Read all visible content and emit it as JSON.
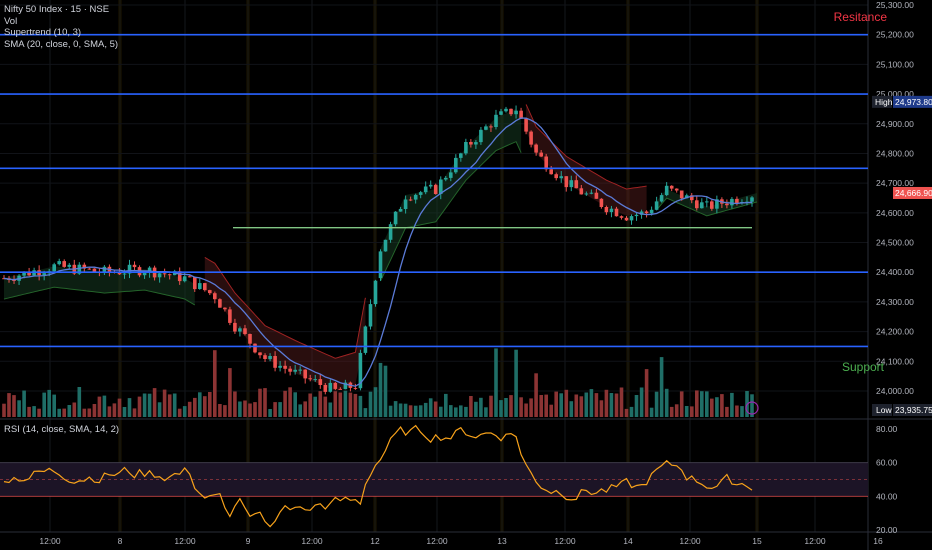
{
  "legend": {
    "symbol": "Nifty 50 Index · 15 · NSE",
    "vol": "Vol",
    "supertrend": "Supertrend (10, 3)",
    "sma": "SMA (20, close, 0, SMA, 5)",
    "rsi": "RSI (14, close, SMA, 14, 2)"
  },
  "annotations": {
    "resistance": "Resitance",
    "support": "Support"
  },
  "colors": {
    "up": "#26a69a",
    "down": "#ef5350",
    "level": "#2962ff",
    "trendline": "#81c784",
    "sma": "#5b7bd8",
    "rsi": "#f7a21b"
  },
  "badges": {
    "high": {
      "label": "High",
      "value": "24,973.80"
    },
    "low": {
      "label": "Low",
      "value": "23,935.75"
    },
    "last": {
      "value": "24,666.90"
    }
  },
  "chart_data": {
    "type": "candlestick",
    "y_axis": {
      "ticks": [
        "25,300.00",
        "25,200.00",
        "25,100.00",
        "25,000.00",
        "24,900.00",
        "24,800.00",
        "24,700.00",
        "24,600.00",
        "24,500.00",
        "24,400.00",
        "24,300.00",
        "24,200.00",
        "24,100.00",
        "24,000.00"
      ],
      "range": [
        23935.75,
        25330
      ]
    },
    "x_axis": {
      "ticks": [
        "12:00",
        "8",
        "12:00",
        "9",
        "12:00",
        "12",
        "12:00",
        "13",
        "12:00",
        "14",
        "12:00",
        "15",
        "12:00",
        "16"
      ]
    },
    "horizontal_levels": [
      25200,
      25000,
      24750,
      24400,
      24150
    ],
    "trendline_level": 24550,
    "rsi": {
      "ticks": [
        "80.00",
        "60.00",
        "40.00",
        "20.00"
      ],
      "range": [
        20,
        85
      ],
      "band": [
        40,
        60
      ]
    },
    "anchors": [
      [
        0,
        24380
      ],
      [
        10,
        24420
      ],
      [
        20,
        24400
      ],
      [
        28,
        24410
      ],
      [
        36,
        24380
      ],
      [
        42,
        24320
      ],
      [
        46,
        24220
      ],
      [
        52,
        24110
      ],
      [
        58,
        24060
      ],
      [
        66,
        24000
      ],
      [
        70,
        24020
      ],
      [
        75,
        24480
      ],
      [
        80,
        24660
      ],
      [
        86,
        24680
      ],
      [
        92,
        24820
      ],
      [
        98,
        24920
      ],
      [
        102,
        24950
      ],
      [
        106,
        24800
      ],
      [
        112,
        24700
      ],
      [
        120,
        24620
      ],
      [
        124,
        24590
      ],
      [
        128,
        24600
      ],
      [
        132,
        24680
      ],
      [
        136,
        24650
      ],
      [
        140,
        24620
      ],
      [
        150,
        24666.9
      ]
    ]
  }
}
